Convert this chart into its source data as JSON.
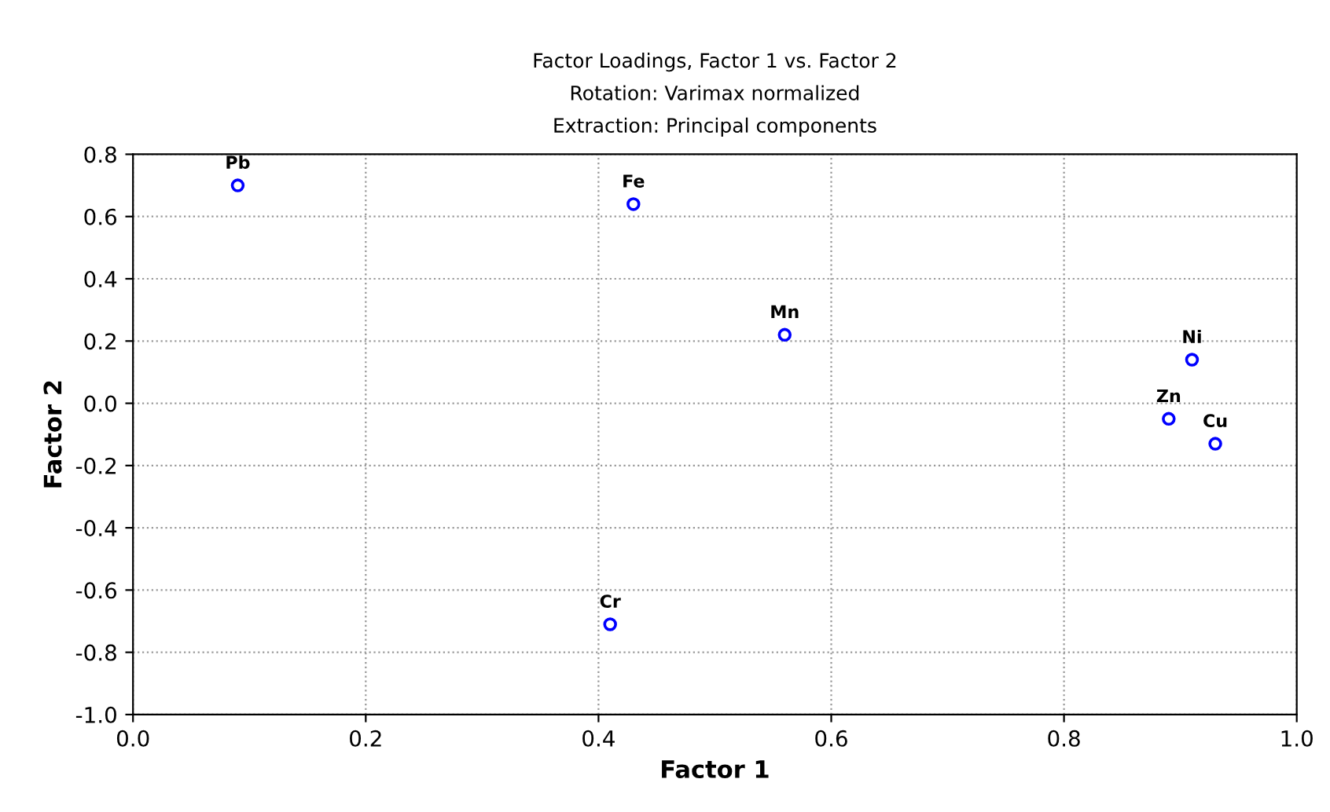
{
  "chart_data": {
    "type": "scatter",
    "title": "Factor Loadings, Factor 1 vs. Factor 2\nRotation: Varimax normalized\nExtraction: Principal components",
    "xlabel": "Factor 1",
    "ylabel": "Factor 2",
    "x": [
      0.09,
      0.43,
      0.56,
      0.91,
      0.89,
      0.93,
      0.41
    ],
    "series": [
      {
        "color": "#0000ff",
        "values": [
          0.7,
          0.64,
          0.22,
          0.14,
          -0.05,
          -0.13,
          -0.71
        ]
      }
    ],
    "annotations": [
      {
        "text": "Pb",
        "x": 0.09,
        "y": 0.7
      },
      {
        "text": "Fe",
        "x": 0.43,
        "y": 0.64
      },
      {
        "text": "Mn",
        "x": 0.56,
        "y": 0.22
      },
      {
        "text": "Ni",
        "x": 0.91,
        "y": 0.14
      },
      {
        "text": "Zn",
        "x": 0.89,
        "y": -0.05
      },
      {
        "text": "Cu",
        "x": 0.93,
        "y": -0.13
      },
      {
        "text": "Cr",
        "x": 0.41,
        "y": -0.71
      }
    ],
    "xlim": [
      0.0,
      1.0
    ],
    "ylim": [
      -1.0,
      0.8
    ],
    "xticks": [
      {
        "value": 0.0,
        "label": "0.0"
      },
      {
        "value": 0.2,
        "label": "0.2"
      },
      {
        "value": 0.4,
        "label": "0.4"
      },
      {
        "value": 0.6,
        "label": "0.6"
      },
      {
        "value": 0.8,
        "label": "0.8"
      },
      {
        "value": 1.0,
        "label": "1.0"
      }
    ],
    "yticks": [
      {
        "value": -1.0,
        "label": "-1.0"
      },
      {
        "value": -0.8,
        "label": "-0.8"
      },
      {
        "value": -0.6,
        "label": "-0.6"
      },
      {
        "value": -0.4,
        "label": "-0.4"
      },
      {
        "value": -0.2,
        "label": "-0.2"
      },
      {
        "value": 0.0,
        "label": "0.0"
      },
      {
        "value": 0.2,
        "label": "0.2"
      },
      {
        "value": 0.4,
        "label": "0.4"
      },
      {
        "value": 0.6,
        "label": "0.6"
      },
      {
        "value": 0.8,
        "label": "0.8"
      }
    ],
    "grid": true,
    "marker": "circle"
  }
}
